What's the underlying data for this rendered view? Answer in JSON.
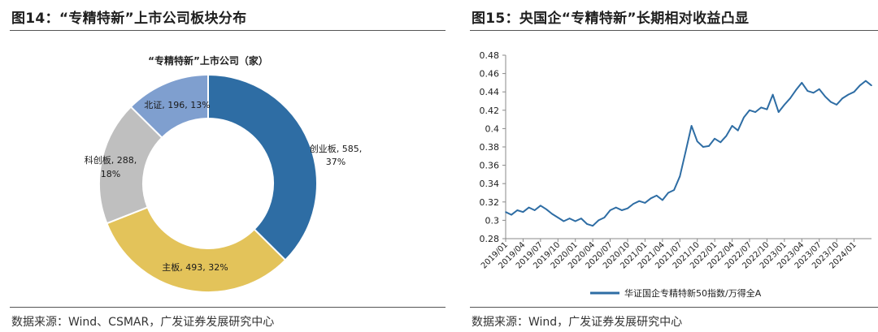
{
  "left": {
    "figure_title": "图14：“专精特新”上市公司板块分布",
    "source": "数据来源：Wind、CSMAR，广发证券发展研究中心"
  },
  "right": {
    "figure_title": "图15：央国企“专精特新”长期相对收益凸显",
    "source": "数据来源：Wind，广发证券发展研究中心"
  },
  "chart_data": [
    {
      "type": "pie",
      "donut": true,
      "title": "“专精特新”上市公司（家）",
      "slices": [
        {
          "label": "创业板",
          "value": 585,
          "percent": "37%",
          "color": "#2e6da4"
        },
        {
          "label": "主板",
          "value": 493,
          "percent": "32%",
          "color": "#e3c35a"
        },
        {
          "label": "科创板",
          "value": 288,
          "percent": "18%",
          "color": "#bfbfbf"
        },
        {
          "label": "北证",
          "value": 196,
          "percent": "13%",
          "color": "#7f9fcf"
        }
      ]
    },
    {
      "type": "line",
      "title": "",
      "xlabel": "",
      "ylabel": "",
      "ylim": [
        0.28,
        0.48
      ],
      "yticks": [
        0.28,
        0.3,
        0.32,
        0.34,
        0.36,
        0.38,
        0.4,
        0.42,
        0.44,
        0.46,
        0.48
      ],
      "ytick_labels": [
        "0.28",
        "0.3",
        "0.32",
        "0.34",
        "0.36",
        "0.38",
        "0.4",
        "0.42",
        "0.44",
        "0.46",
        "0.48"
      ],
      "xlim": [
        "2019-01",
        "2024-04"
      ],
      "xticks": [
        "2019/01",
        "2019/04",
        "2019/07",
        "2019/10",
        "2020/01",
        "2020/04",
        "2020/07",
        "2020/10",
        "2021/01",
        "2021/04",
        "2021/07",
        "2021/10",
        "2022/01",
        "2022/04",
        "2022/07",
        "2022/10",
        "2023/01",
        "2023/04",
        "2023/07",
        "2023/10",
        "2024/01"
      ],
      "legend_position": "bottom",
      "series": [
        {
          "name": "华证国企专精特新50指数/万得全A",
          "color": "#2e6da4",
          "x": [
            "2019-01",
            "2019-02",
            "2019-03",
            "2019-04",
            "2019-05",
            "2019-06",
            "2019-07",
            "2019-08",
            "2019-09",
            "2019-10",
            "2019-11",
            "2019-12",
            "2020-01",
            "2020-02",
            "2020-03",
            "2020-04",
            "2020-05",
            "2020-06",
            "2020-07",
            "2020-08",
            "2020-09",
            "2020-10",
            "2020-11",
            "2020-12",
            "2021-01",
            "2021-02",
            "2021-03",
            "2021-04",
            "2021-05",
            "2021-06",
            "2021-07",
            "2021-08",
            "2021-09",
            "2021-10",
            "2021-11",
            "2021-12",
            "2022-01",
            "2022-02",
            "2022-03",
            "2022-04",
            "2022-05",
            "2022-06",
            "2022-07",
            "2022-08",
            "2022-09",
            "2022-10",
            "2022-11",
            "2022-12",
            "2023-01",
            "2023-02",
            "2023-03",
            "2023-04",
            "2023-05",
            "2023-06",
            "2023-07",
            "2023-08",
            "2023-09",
            "2023-10",
            "2023-11",
            "2023-12",
            "2024-01",
            "2024-02",
            "2024-03",
            "2024-04"
          ],
          "values": [
            0.309,
            0.306,
            0.311,
            0.309,
            0.314,
            0.311,
            0.316,
            0.312,
            0.307,
            0.303,
            0.299,
            0.302,
            0.299,
            0.302,
            0.296,
            0.294,
            0.3,
            0.303,
            0.311,
            0.314,
            0.311,
            0.313,
            0.318,
            0.321,
            0.319,
            0.324,
            0.327,
            0.322,
            0.33,
            0.333,
            0.348,
            0.375,
            0.403,
            0.386,
            0.38,
            0.381,
            0.389,
            0.385,
            0.392,
            0.403,
            0.398,
            0.412,
            0.42,
            0.418,
            0.423,
            0.421,
            0.437,
            0.418,
            0.426,
            0.433,
            0.442,
            0.45,
            0.441,
            0.439,
            0.443,
            0.435,
            0.429,
            0.426,
            0.433,
            0.437,
            0.44,
            0.447,
            0.452,
            0.447
          ]
        }
      ]
    }
  ]
}
